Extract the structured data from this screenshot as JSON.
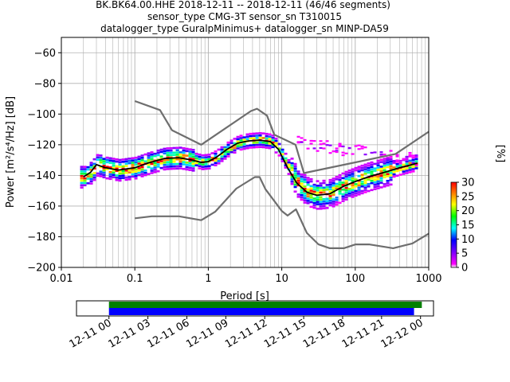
{
  "title": {
    "line1": "BK.BK64.00.HHE   2018-12-11 -- 2018-12-11  (46/46 segments)",
    "line2": "sensor_type CMG-3T sensor_sn T310015",
    "line3": "datalogger_type GuralpMinimus+ datalogger_sn MINP-DA59"
  },
  "chart_data": {
    "type": "heatmap",
    "xlabel": "Period [s]",
    "ylabel": "Power [m²/s⁴/Hz] [dB]",
    "xscale": "log",
    "xlim": [
      0.01,
      1000
    ],
    "ylim": [
      -200,
      -50
    ],
    "xticks": [
      "0.01",
      "0.1",
      "1",
      "10",
      "100",
      "1000"
    ],
    "yticks": [
      "−200",
      "−180",
      "−160",
      "−140",
      "−120",
      "−100",
      "−80",
      "−60"
    ],
    "grid": true,
    "colorbar": {
      "label": "[%]",
      "range": [
        0,
        30
      ],
      "ticks": [
        "0",
        "5",
        "10",
        "15",
        "20",
        "25",
        "30"
      ]
    },
    "colors": {
      "noise_model": "#6e6e6e",
      "mean": "#000000"
    },
    "noise_models": {
      "high": {
        "x": [
          0.1,
          0.22,
          0.32,
          0.8,
          3.8,
          4.6,
          6.3,
          7.9,
          15.4,
          20,
          354.8,
          1000
        ],
        "y": [
          -91.5,
          -97.4,
          -110.5,
          -120,
          -98,
          -96.5,
          -101,
          -113.5,
          -120,
          -138.5,
          -126,
          -111.5
        ]
      },
      "low": {
        "x": [
          0.1,
          0.17,
          0.4,
          0.8,
          1.24,
          2.4,
          4.3,
          5,
          6,
          10,
          12,
          15.6,
          21.9,
          31.6,
          45,
          70,
          101,
          154,
          328,
          600,
          1000
        ],
        "y": [
          -168,
          -166.7,
          -166.7,
          -169.2,
          -163.7,
          -148.6,
          -141.1,
          -141.1,
          -149,
          -163.2,
          -166.2,
          -162.1,
          -177.5,
          -185,
          -187.5,
          -187.5,
          -185,
          -185,
          -187.5,
          -184.4,
          -178
        ]
      }
    },
    "mean_curve": {
      "x": [
        0.02,
        0.025,
        0.03,
        0.04,
        0.06,
        0.1,
        0.15,
        0.25,
        0.4,
        0.6,
        0.8,
        1.0,
        1.3,
        1.8,
        2.5,
        3.5,
        5,
        7,
        9,
        12,
        16,
        22,
        30,
        45,
        70,
        100,
        150,
        250,
        400,
        700
      ],
      "y": [
        -141,
        -138,
        -133,
        -135,
        -136.5,
        -135,
        -132,
        -129,
        -128.5,
        -130,
        -131.5,
        -131,
        -128,
        -123,
        -119,
        -117.5,
        -117,
        -118,
        -123,
        -135,
        -145,
        -151,
        -153,
        -152,
        -147,
        -144,
        -141,
        -138,
        -135,
        -132
      ]
    }
  },
  "timeline": {
    "ticks": [
      "12-11 00",
      "12-11 03",
      "12-11 06",
      "12-11 09",
      "12-11 12",
      "12-11 15",
      "12-11 18",
      "12-11 21",
      "12-12 00"
    ],
    "range_hours": [
      -2.5,
      25
    ],
    "bars": [
      {
        "name": "green",
        "color": "#008000",
        "start_hours": 0,
        "end_hours": 24.1
      },
      {
        "name": "blue",
        "color": "#0000ff",
        "start_hours": 0,
        "end_hours": 23.5
      }
    ]
  }
}
